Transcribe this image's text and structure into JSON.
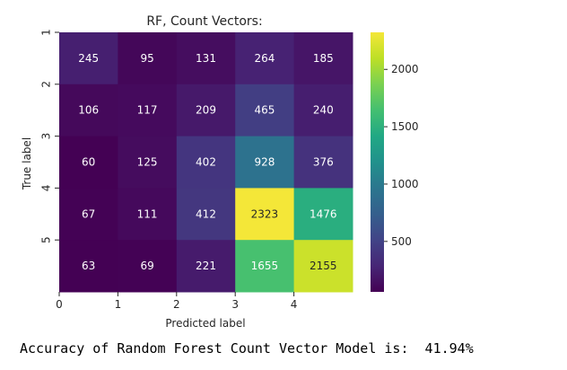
{
  "chart_data": {
    "type": "heatmap",
    "title": "RF, Count Vectors:",
    "xlabel": "Predicted label",
    "ylabel": "True label",
    "x_tick_labels": [
      "0",
      "1",
      "2",
      "3",
      "4"
    ],
    "y_tick_labels": [
      "1",
      "2",
      "3",
      "4",
      "5"
    ],
    "matrix": [
      [
        245,
        95,
        131,
        264,
        185
      ],
      [
        106,
        117,
        209,
        465,
        240
      ],
      [
        60,
        125,
        402,
        928,
        376
      ],
      [
        67,
        111,
        412,
        2323,
        1476
      ],
      [
        63,
        69,
        221,
        1655,
        2155
      ]
    ],
    "colormap": "viridis",
    "colorbar": {
      "vmin": 60,
      "vmax": 2323,
      "ticks": [
        500,
        1000,
        1500,
        2000
      ],
      "tick_labels": [
        "500",
        "1000",
        "1500",
        "2000"
      ]
    }
  },
  "output_text": "Accuracy of Random Forest Count Vector Model is:  41.94%"
}
